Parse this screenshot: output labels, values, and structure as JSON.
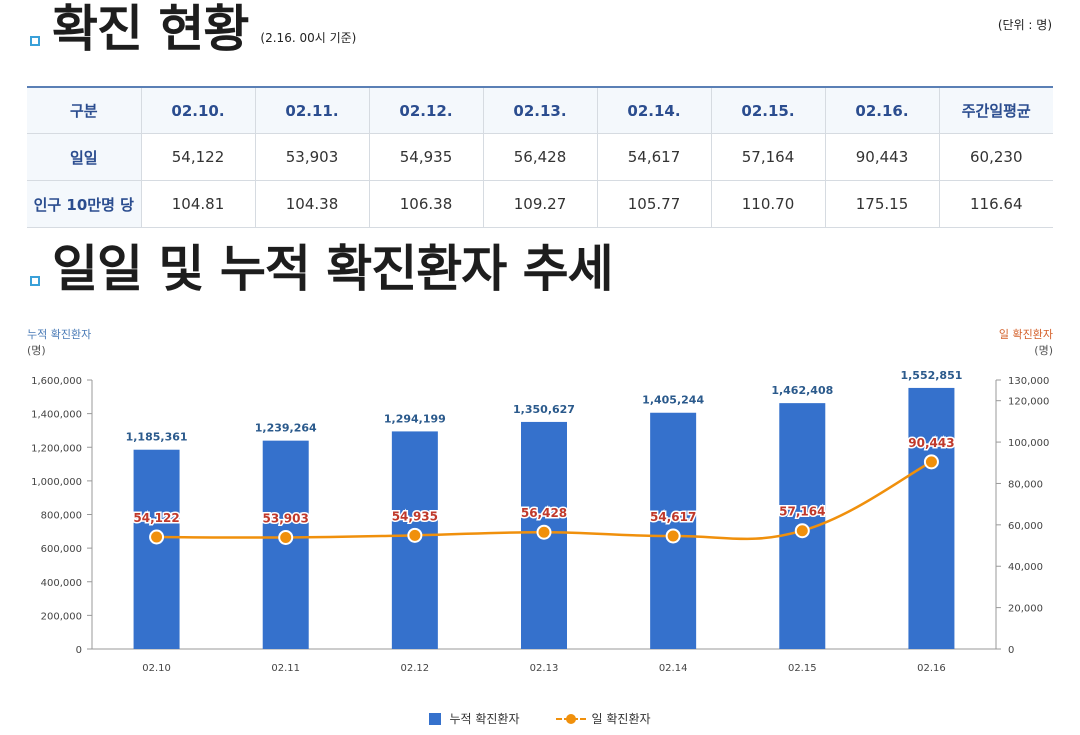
{
  "header": {
    "title": "확진 현황",
    "subtitle": "(2.16. 00시 기준)",
    "unit": "(단위 : 명)"
  },
  "table": {
    "columns": [
      "구분",
      "02.10.",
      "02.11.",
      "02.12.",
      "02.13.",
      "02.14.",
      "02.15.",
      "02.16.",
      "주간일평균"
    ],
    "rows": [
      {
        "label": "일일",
        "values": [
          "54,122",
          "53,903",
          "54,935",
          "56,428",
          "54,617",
          "57,164",
          "90,443",
          "60,230"
        ]
      },
      {
        "label": "인구 10만명 당",
        "values": [
          "104.81",
          "104.38",
          "106.38",
          "109.27",
          "105.77",
          "110.70",
          "175.15",
          "116.64"
        ]
      }
    ]
  },
  "trend": {
    "title": "일일 및 누적 확진환자 추세"
  },
  "colors": {
    "bar": "#3571cc",
    "line": "#f0900c",
    "bar_label": "#2b5a8c",
    "line_label": "#c0392b",
    "left_axis_title": "#4a7bb7",
    "right_axis_title": "#d4602a"
  },
  "chart_data": {
    "type": "bar",
    "categories": [
      "02.10",
      "02.11",
      "02.12",
      "02.13",
      "02.14",
      "02.15",
      "02.16"
    ],
    "series": [
      {
        "name": "누적 확진환자",
        "type": "bar",
        "axis": "left",
        "values": [
          1185361,
          1239264,
          1294199,
          1350627,
          1405244,
          1462408,
          1552851
        ],
        "labels": [
          "1,185,361",
          "1,239,264",
          "1,294,199",
          "1,350,627",
          "1,405,244",
          "1,462,408",
          "1,552,851"
        ]
      },
      {
        "name": "일 확진환자",
        "type": "line",
        "axis": "right",
        "values": [
          54122,
          53903,
          54935,
          56428,
          54617,
          57164,
          90443
        ],
        "labels": [
          "54,122",
          "53,903",
          "54,935",
          "56,428",
          "54,617",
          "57,164",
          "90,443"
        ]
      }
    ],
    "left_axis": {
      "title": "누적 확진환자",
      "unit": "(명)",
      "range": [
        0,
        1600000
      ],
      "ticks": [
        0,
        200000,
        400000,
        600000,
        800000,
        1000000,
        1200000,
        1400000,
        1600000
      ],
      "tick_labels": [
        "0",
        "200,000",
        "400,000",
        "600,000",
        "800,000",
        "1,000,000",
        "1,200,000",
        "1,400,000",
        "1,600,000"
      ]
    },
    "right_axis": {
      "title": "일 확진환자",
      "unit": "(명)",
      "range": [
        0,
        130000
      ],
      "ticks": [
        0,
        20000,
        40000,
        60000,
        80000,
        100000,
        120000,
        130000
      ],
      "tick_labels": [
        "0",
        "20,000",
        "40,000",
        "60,000",
        "80,000",
        "100,000",
        "120,000",
        "130,000"
      ]
    },
    "legend": [
      "누적 확진환자",
      "일 확진환자"
    ],
    "legend_position": "bottom-center",
    "grid": false
  }
}
